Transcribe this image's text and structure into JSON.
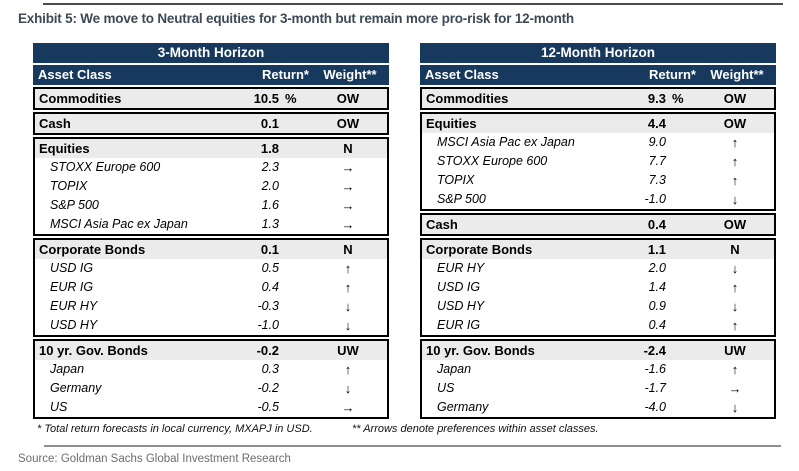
{
  "title": "Exhibit 5: We move to Neutral equities for 3-month but remain more pro-risk for 12-month",
  "columns": {
    "asset_class": "Asset Class",
    "return": "Return*",
    "weight": "Weight**"
  },
  "footnotes": {
    "first": "* Total return forecasts in local currency, MXAPJ in USD.",
    "second": "** Arrows denote preferences within asset classes."
  },
  "source": "Source: Goldman Sachs Global Investment Research",
  "colors": {
    "header_navy": "#17395d",
    "category_row_bg": "#ebebeb",
    "box_border": "#000000",
    "title_text": "#3d4a56",
    "source_text": "#6d6d6d"
  },
  "tables": [
    {
      "title": "3-Month Horizon",
      "groups": [
        {
          "rows": [
            {
              "label": "Commodities",
              "return": "10.5",
              "pct": "%",
              "weight": "OW",
              "category": true
            }
          ]
        },
        {
          "rows": [
            {
              "label": "Cash",
              "return": "0.1",
              "weight": "OW",
              "category": true
            }
          ]
        },
        {
          "rows": [
            {
              "label": "Equities",
              "return": "1.8",
              "weight": "N",
              "category": true
            },
            {
              "label": "STOXX Europe 600",
              "return": "2.3",
              "arrow": "right"
            },
            {
              "label": "TOPIX",
              "return": "2.0",
              "arrow": "right"
            },
            {
              "label": "S&P 500",
              "return": "1.6",
              "arrow": "right"
            },
            {
              "label": "MSCI Asia Pac ex Japan",
              "return": "1.3",
              "arrow": "right"
            }
          ]
        },
        {
          "rows": [
            {
              "label": "Corporate Bonds",
              "return": "0.1",
              "weight": "N",
              "category": true
            },
            {
              "label": "USD IG",
              "return": "0.5",
              "arrow": "up"
            },
            {
              "label": "EUR IG",
              "return": "0.4",
              "arrow": "up"
            },
            {
              "label": "EUR HY",
              "return": "-0.3",
              "arrow": "down"
            },
            {
              "label": "USD HY",
              "return": "-1.0",
              "arrow": "down"
            }
          ]
        },
        {
          "rows": [
            {
              "label": "10 yr. Gov. Bonds",
              "return": "-0.2",
              "weight": "UW",
              "category": true
            },
            {
              "label": "Japan",
              "return": "0.3",
              "arrow": "up"
            },
            {
              "label": "Germany",
              "return": "-0.2",
              "arrow": "down"
            },
            {
              "label": "US",
              "return": "-0.5",
              "arrow": "right"
            }
          ]
        }
      ]
    },
    {
      "title": "12-Month Horizon",
      "groups": [
        {
          "rows": [
            {
              "label": "Commodities",
              "return": "9.3",
              "pct": "%",
              "weight": "OW",
              "category": true
            }
          ]
        },
        {
          "rows": [
            {
              "label": "Equities",
              "return": "4.4",
              "weight": "OW",
              "category": true
            },
            {
              "label": "MSCI Asia Pac ex Japan",
              "return": "9.0",
              "arrow": "up"
            },
            {
              "label": "STOXX Europe 600",
              "return": "7.7",
              "arrow": "up"
            },
            {
              "label": "TOPIX",
              "return": "7.3",
              "arrow": "up"
            },
            {
              "label": "S&P 500",
              "return": "-1.0",
              "arrow": "down"
            }
          ]
        },
        {
          "rows": [
            {
              "label": "Cash",
              "return": "0.4",
              "weight": "OW",
              "category": true
            }
          ]
        },
        {
          "rows": [
            {
              "label": "Corporate Bonds",
              "return": "1.1",
              "weight": "N",
              "category": true
            },
            {
              "label": "EUR HY",
              "return": "2.0",
              "arrow": "down"
            },
            {
              "label": "USD IG",
              "return": "1.4",
              "arrow": "up"
            },
            {
              "label": "USD HY",
              "return": "0.9",
              "arrow": "down"
            },
            {
              "label": "EUR IG",
              "return": "0.4",
              "arrow": "up"
            }
          ]
        },
        {
          "rows": [
            {
              "label": "10 yr. Gov. Bonds",
              "return": "-2.4",
              "weight": "UW",
              "category": true
            },
            {
              "label": "Japan",
              "return": "-1.6",
              "arrow": "up"
            },
            {
              "label": "US",
              "return": "-1.7",
              "arrow": "right"
            },
            {
              "label": "Germany",
              "return": "-4.0",
              "arrow": "down"
            }
          ]
        }
      ]
    }
  ]
}
